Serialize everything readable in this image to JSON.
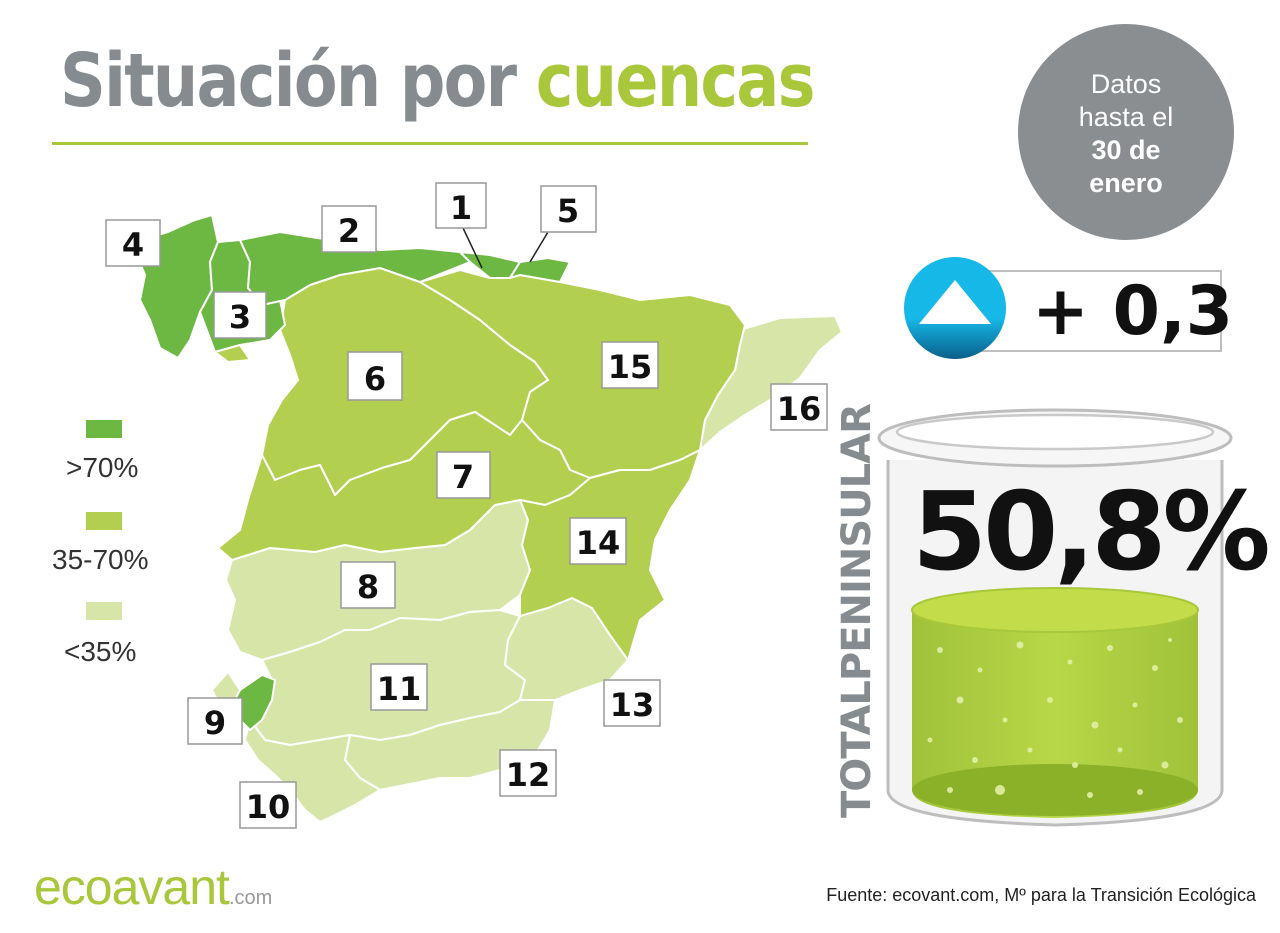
{
  "title": {
    "part1": "Situación por",
    "part2": "cuencas"
  },
  "date_badge": {
    "line1": "Datos",
    "line2": "hasta el",
    "line3": "30 de",
    "line4": "enero"
  },
  "legend": [
    {
      "label": ">70%",
      "color": "#6cb843"
    },
    {
      "label": "35-70%",
      "color": "#b3cf50"
    },
    {
      "label": "<35%",
      "color": "#d7e6a8"
    }
  ],
  "basins": [
    {
      "number": "1",
      "level": ">70%"
    },
    {
      "number": "2",
      "level": ">70%"
    },
    {
      "number": "3",
      "level": ">70%"
    },
    {
      "number": "4",
      "level": ">70%"
    },
    {
      "number": "5",
      "level": ">70%"
    },
    {
      "number": "6",
      "level": "35-70%"
    },
    {
      "number": "7",
      "level": "35-70%"
    },
    {
      "number": "8",
      "level": "<35%"
    },
    {
      "number": "9",
      "level": ">70%"
    },
    {
      "number": "10",
      "level": "<35%"
    },
    {
      "number": "11",
      "level": "<35%"
    },
    {
      "number": "12",
      "level": "<35%"
    },
    {
      "number": "13",
      "level": "<35%"
    },
    {
      "number": "14",
      "level": "35-70%"
    },
    {
      "number": "15",
      "level": "35-70%"
    },
    {
      "number": "16",
      "level": "<35%"
    }
  ],
  "change": {
    "value": "+ 0,3",
    "icon": "up-arrow-icon"
  },
  "total": {
    "label": "TOTALPENINSULAR",
    "percent": "50,8%",
    "fill_fraction": 0.508
  },
  "logo": {
    "main": "ecoavant",
    "suffix": ".com"
  },
  "source": "Fuente: ecovant.com, Mº para la Transición Ecológica"
}
